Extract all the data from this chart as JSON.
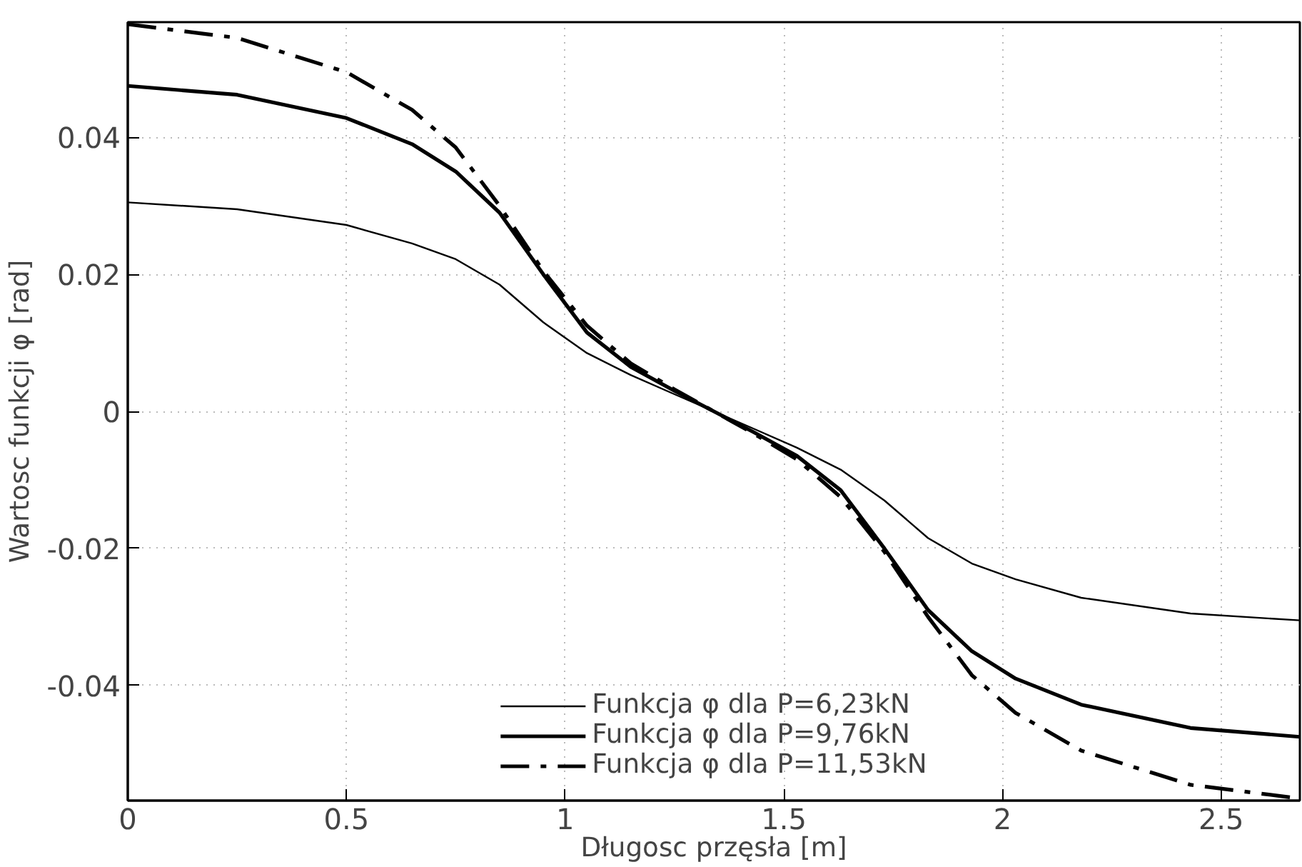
{
  "chart_data": {
    "type": "line",
    "xlabel": "Długosc przęsła [m]",
    "ylabel": "Wartosc funkcji φ [rad]",
    "xlim": [
      0,
      2.68
    ],
    "ylim": [
      -0.0568,
      0.0568
    ],
    "xticks": [
      0,
      0.5,
      1,
      1.5,
      2,
      2.5
    ],
    "yticks": [
      -0.04,
      -0.02,
      0,
      0.02,
      0.04
    ],
    "grid": true,
    "legend": "bottom",
    "marker": "none",
    "x": [
      0,
      0.25,
      0.5,
      0.65,
      0.75,
      0.85,
      0.95,
      1.05,
      1.15,
      1.25,
      1.34,
      1.43,
      1.53,
      1.63,
      1.73,
      1.83,
      1.93,
      2.03,
      2.18,
      2.43,
      2.68
    ],
    "series": [
      {
        "name": "Funkcja φ dla P=6,23kN",
        "color": "#000000",
        "line_style": "solid",
        "values": [
          0.0305,
          0.0295,
          0.0272,
          0.0245,
          0.0222,
          0.0185,
          0.013,
          0.0085,
          0.0053,
          0.0025,
          0,
          -0.0025,
          -0.0053,
          -0.0085,
          -0.013,
          -0.0185,
          -0.0222,
          -0.0245,
          -0.0272,
          -0.0295,
          -0.0305
        ]
      },
      {
        "name": "Funkcja φ dla P=9,76kN",
        "color": "#000000",
        "line_style": "solid",
        "values": [
          0.0475,
          0.0462,
          0.0428,
          0.039,
          0.035,
          0.029,
          0.02,
          0.0115,
          0.0065,
          0.003,
          0,
          -0.003,
          -0.0065,
          -0.0115,
          -0.02,
          -0.029,
          -0.035,
          -0.039,
          -0.0428,
          -0.0462,
          -0.0475
        ]
      },
      {
        "name": "Funkcja φ dla P=11,53kN",
        "color": "#000000",
        "line_style": "dashdot",
        "values": [
          0.0565,
          0.0545,
          0.0495,
          0.044,
          0.0385,
          0.03,
          0.0205,
          0.0125,
          0.007,
          0.0032,
          0,
          -0.0032,
          -0.007,
          -0.0125,
          -0.0205,
          -0.03,
          -0.0385,
          -0.044,
          -0.0495,
          -0.0545,
          -0.0565
        ]
      }
    ]
  }
}
